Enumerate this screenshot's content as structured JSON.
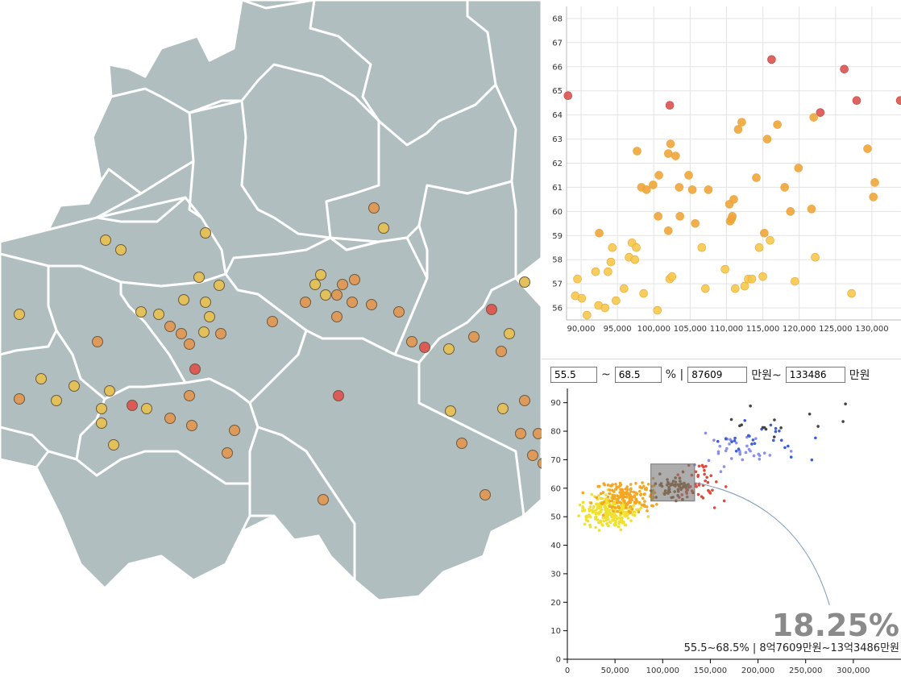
{
  "map": {
    "colors": {
      "land": "#b0bec0",
      "border": "#ffffff",
      "red": "#dc5a58",
      "orange": "#de9a5b",
      "yellow": "#e2c05a"
    },
    "points": [
      {
        "x": 131,
        "y": 298,
        "c": "yellow"
      },
      {
        "x": 150,
        "y": 310,
        "c": "yellow"
      },
      {
        "x": 255,
        "y": 289,
        "c": "yellow"
      },
      {
        "x": 464,
        "y": 258,
        "c": "orange"
      },
      {
        "x": 476,
        "y": 283,
        "c": "yellow"
      },
      {
        "x": 247,
        "y": 344,
        "c": "yellow"
      },
      {
        "x": 272,
        "y": 354,
        "c": "yellow"
      },
      {
        "x": 228,
        "y": 372,
        "c": "yellow"
      },
      {
        "x": 255,
        "y": 375,
        "c": "yellow"
      },
      {
        "x": 175,
        "y": 387,
        "c": "yellow"
      },
      {
        "x": 197,
        "y": 390,
        "c": "yellow"
      },
      {
        "x": 24,
        "y": 390,
        "c": "yellow"
      },
      {
        "x": 260,
        "y": 393,
        "c": "yellow"
      },
      {
        "x": 211,
        "y": 405,
        "c": "orange"
      },
      {
        "x": 225,
        "y": 414,
        "c": "orange"
      },
      {
        "x": 253,
        "y": 412,
        "c": "yellow"
      },
      {
        "x": 274,
        "y": 414,
        "c": "orange"
      },
      {
        "x": 235,
        "y": 427,
        "c": "orange"
      },
      {
        "x": 121,
        "y": 424,
        "c": "orange"
      },
      {
        "x": 398,
        "y": 341,
        "c": "yellow"
      },
      {
        "x": 391,
        "y": 353,
        "c": "yellow"
      },
      {
        "x": 425,
        "y": 353,
        "c": "orange"
      },
      {
        "x": 440,
        "y": 347,
        "c": "orange"
      },
      {
        "x": 404,
        "y": 366,
        "c": "yellow"
      },
      {
        "x": 418,
        "y": 366,
        "c": "orange"
      },
      {
        "x": 379,
        "y": 375,
        "c": "orange"
      },
      {
        "x": 437,
        "y": 375,
        "c": "orange"
      },
      {
        "x": 461,
        "y": 378,
        "c": "orange"
      },
      {
        "x": 418,
        "y": 393,
        "c": "orange"
      },
      {
        "x": 495,
        "y": 387,
        "c": "orange"
      },
      {
        "x": 338,
        "y": 399,
        "c": "orange"
      },
      {
        "x": 651,
        "y": 350,
        "c": "yellow"
      },
      {
        "x": 610,
        "y": 384,
        "c": "red"
      },
      {
        "x": 632,
        "y": 414,
        "c": "yellow"
      },
      {
        "x": 588,
        "y": 418,
        "c": "orange"
      },
      {
        "x": 511,
        "y": 424,
        "c": "orange"
      },
      {
        "x": 527,
        "y": 431,
        "c": "red"
      },
      {
        "x": 557,
        "y": 433,
        "c": "yellow"
      },
      {
        "x": 622,
        "y": 436,
        "c": "orange"
      },
      {
        "x": 242,
        "y": 458,
        "c": "red"
      },
      {
        "x": 51,
        "y": 470,
        "c": "yellow"
      },
      {
        "x": 92,
        "y": 479,
        "c": "yellow"
      },
      {
        "x": 136,
        "y": 485,
        "c": "yellow"
      },
      {
        "x": 24,
        "y": 495,
        "c": "orange"
      },
      {
        "x": 70,
        "y": 497,
        "c": "yellow"
      },
      {
        "x": 164,
        "y": 503,
        "c": "red"
      },
      {
        "x": 182,
        "y": 507,
        "c": "yellow"
      },
      {
        "x": 235,
        "y": 491,
        "c": "orange"
      },
      {
        "x": 126,
        "y": 507,
        "c": "yellow"
      },
      {
        "x": 211,
        "y": 519,
        "c": "orange"
      },
      {
        "x": 126,
        "y": 525,
        "c": "yellow"
      },
      {
        "x": 238,
        "y": 528,
        "c": "orange"
      },
      {
        "x": 291,
        "y": 534,
        "c": "orange"
      },
      {
        "x": 141,
        "y": 552,
        "c": "yellow"
      },
      {
        "x": 282,
        "y": 562,
        "c": "orange"
      },
      {
        "x": 420,
        "y": 491,
        "c": "red"
      },
      {
        "x": 559,
        "y": 510,
        "c": "yellow"
      },
      {
        "x": 624,
        "y": 507,
        "c": "yellow"
      },
      {
        "x": 651,
        "y": 497,
        "c": "orange"
      },
      {
        "x": 646,
        "y": 538,
        "c": "orange"
      },
      {
        "x": 573,
        "y": 550,
        "c": "orange"
      },
      {
        "x": 668,
        "y": 538,
        "c": "orange"
      },
      {
        "x": 661,
        "y": 565,
        "c": "orange"
      },
      {
        "x": 602,
        "y": 614,
        "c": "orange"
      },
      {
        "x": 401,
        "y": 620,
        "c": "orange"
      },
      {
        "x": 674,
        "y": 575,
        "c": "orange"
      }
    ]
  },
  "top_chart": {
    "chart_data": {
      "type": "scatter",
      "xlim": [
        88000,
        134000
      ],
      "ylim": [
        55.5,
        68.5
      ],
      "x_ticks": [
        "90,000",
        "95,000",
        "100,000",
        "105,000",
        "110,000",
        "115,000",
        "120,000",
        "125,000",
        "130,000"
      ],
      "x_tick_values": [
        90000,
        95000,
        100000,
        105000,
        110000,
        115000,
        120000,
        125000,
        130000
      ],
      "y_ticks": [
        "56",
        "57",
        "58",
        "59",
        "60",
        "61",
        "62",
        "63",
        "64",
        "65",
        "66",
        "67",
        "68"
      ],
      "y_tick_values": [
        56,
        57,
        58,
        59,
        60,
        61,
        62,
        63,
        64,
        65,
        66,
        67,
        68
      ],
      "points": [
        [
          88200,
          64.8,
          "red"
        ],
        [
          102200,
          64.4,
          "red"
        ],
        [
          116200,
          66.3,
          "red"
        ],
        [
          126200,
          65.9,
          "red"
        ],
        [
          122900,
          64.1,
          "red"
        ],
        [
          127900,
          64.6,
          "red"
        ],
        [
          133900,
          64.6,
          "red"
        ],
        [
          89200,
          56.5,
          "yellow"
        ],
        [
          89500,
          57.2,
          "yellow"
        ],
        [
          90100,
          56.4,
          "yellow"
        ],
        [
          90800,
          55.7,
          "yellow"
        ],
        [
          92000,
          57.5,
          "yellow"
        ],
        [
          92400,
          56.1,
          "yellow"
        ],
        [
          92500,
          59.1,
          "orange"
        ],
        [
          93300,
          56.0,
          "yellow"
        ],
        [
          93700,
          57.5,
          "yellow"
        ],
        [
          94100,
          57.9,
          "yellow"
        ],
        [
          94300,
          58.5,
          "yellow"
        ],
        [
          94800,
          56.3,
          "yellow"
        ],
        [
          95900,
          56.8,
          "yellow"
        ],
        [
          96600,
          58.1,
          "yellow"
        ],
        [
          97000,
          58.7,
          "yellow"
        ],
        [
          97400,
          58.0,
          "yellow"
        ],
        [
          97600,
          58.5,
          "yellow"
        ],
        [
          97700,
          62.5,
          "orange"
        ],
        [
          98300,
          61.0,
          "orange"
        ],
        [
          98600,
          56.6,
          "yellow"
        ],
        [
          99000,
          60.9,
          "orange"
        ],
        [
          99900,
          61.1,
          "orange"
        ],
        [
          100500,
          55.9,
          "yellow"
        ],
        [
          100600,
          59.8,
          "orange"
        ],
        [
          100700,
          61.5,
          "orange"
        ],
        [
          102000,
          59.2,
          "orange"
        ],
        [
          102200,
          57.2,
          "yellow"
        ],
        [
          102500,
          57.3,
          "yellow"
        ],
        [
          102000,
          62.4,
          "orange"
        ],
        [
          102300,
          62.8,
          "orange"
        ],
        [
          103000,
          62.3,
          "orange"
        ],
        [
          103500,
          61.0,
          "orange"
        ],
        [
          103600,
          59.8,
          "orange"
        ],
        [
          104800,
          61.5,
          "orange"
        ],
        [
          105300,
          60.9,
          "orange"
        ],
        [
          105700,
          59.5,
          "orange"
        ],
        [
          106600,
          58.5,
          "yellow"
        ],
        [
          107100,
          56.8,
          "yellow"
        ],
        [
          107500,
          60.9,
          "orange"
        ],
        [
          109800,
          57.6,
          "yellow"
        ],
        [
          110400,
          60.3,
          "orange"
        ],
        [
          110500,
          59.6,
          "orange"
        ],
        [
          110700,
          59.7,
          "orange"
        ],
        [
          110800,
          59.8,
          "orange"
        ],
        [
          111200,
          56.8,
          "yellow"
        ],
        [
          111000,
          60.5,
          "orange"
        ],
        [
          111600,
          63.4,
          "orange"
        ],
        [
          112100,
          63.7,
          "orange"
        ],
        [
          112500,
          56.9,
          "yellow"
        ],
        [
          113000,
          57.2,
          "yellow"
        ],
        [
          113500,
          57.2,
          "yellow"
        ],
        [
          114100,
          61.4,
          "orange"
        ],
        [
          114500,
          58.5,
          "yellow"
        ],
        [
          115000,
          57.3,
          "yellow"
        ],
        [
          115200,
          59.1,
          "orange"
        ],
        [
          115600,
          63.0,
          "orange"
        ],
        [
          116000,
          58.8,
          "yellow"
        ],
        [
          117000,
          63.6,
          "orange"
        ],
        [
          118000,
          61.0,
          "orange"
        ],
        [
          118800,
          60.0,
          "orange"
        ],
        [
          119400,
          57.1,
          "yellow"
        ],
        [
          119900,
          61.8,
          "orange"
        ],
        [
          121700,
          60.1,
          "orange"
        ],
        [
          122000,
          63.9,
          "orange"
        ],
        [
          122200,
          58.1,
          "yellow"
        ],
        [
          127200,
          56.6,
          "yellow"
        ],
        [
          129400,
          62.6,
          "orange"
        ],
        [
          130400,
          61.2,
          "orange"
        ],
        [
          130200,
          60.6,
          "orange"
        ]
      ]
    }
  },
  "controls": {
    "rate_min": "55.5",
    "tilde": "~",
    "rate_max": "68.5",
    "percent_sep": "% |",
    "price_min": "87609",
    "price_unit_tilde": "만원~",
    "price_max": "133486",
    "price_unit": "만원"
  },
  "bottom_chart": {
    "chart_data": {
      "type": "scatter",
      "xlim": [
        0,
        350000
      ],
      "ylim": [
        0,
        95
      ],
      "x_ticks": [
        "0",
        "50,000",
        "100,000",
        "150,000",
        "200,000",
        "250,000",
        "300,000"
      ],
      "x_tick_values": [
        0,
        50000,
        100000,
        150000,
        200000,
        250000,
        300000
      ],
      "y_ticks": [
        "0",
        "10",
        "20",
        "30",
        "40",
        "50",
        "60",
        "70",
        "80",
        "90"
      ],
      "y_tick_values": [
        0,
        10,
        20,
        30,
        40,
        50,
        60,
        70,
        80,
        90
      ],
      "selection": {
        "x0": 87609,
        "x1": 133486,
        "y0": 55.5,
        "y1": 68.5
      },
      "percent": "18.25%",
      "caption": "55.5~68.5% | 8억7609만원~13억3486만원",
      "colors": {
        "yellow": "#f0e030",
        "orange": "#f5a623",
        "red": "#e04a3a",
        "blue": "#3a5fd9",
        "lightblue": "#8b8fe8",
        "dark": "#444444",
        "brown": "#8a5a2a"
      }
    }
  }
}
